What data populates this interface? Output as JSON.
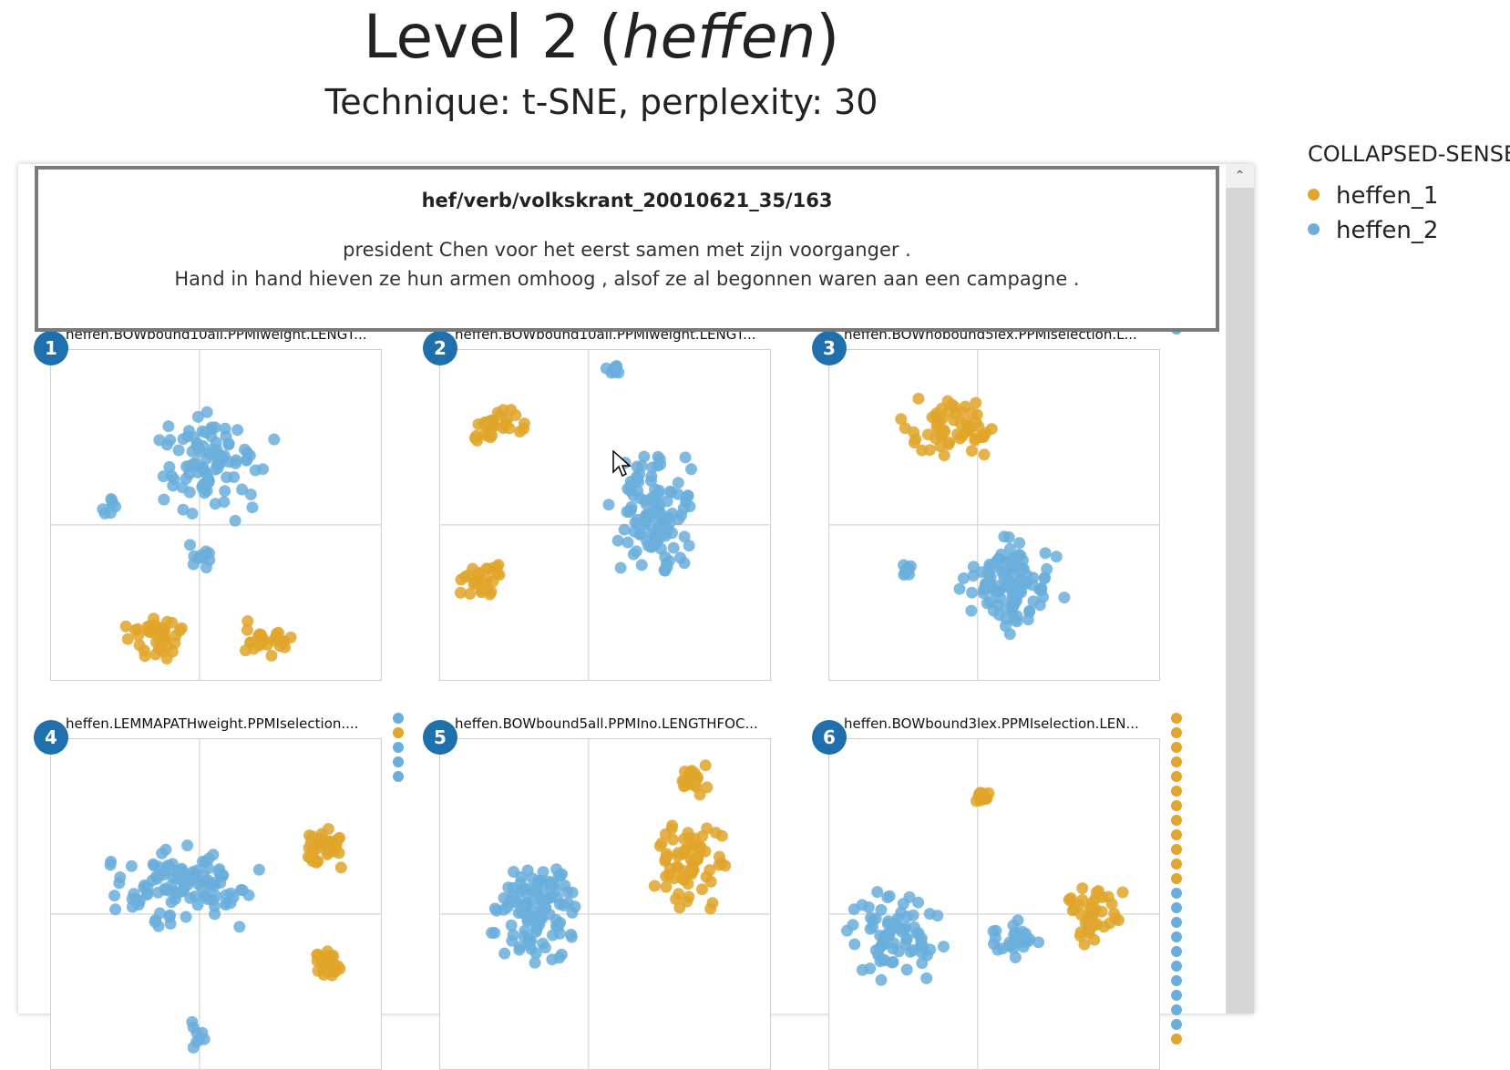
{
  "header": {
    "title_prefix": "Level 2 (",
    "title_word": "heffen",
    "title_suffix": ")",
    "subtitle": "Technique: t-SNE, perplexity: 30"
  },
  "tooltip": {
    "title": "hef/verb/volkskrant_20010621_35/163",
    "line1": "president Chen voor het eerst samen met zijn voorganger .",
    "line2": "Hand in hand hieven ze hun armen omhoog , alsof ze al begonnen waren aan een campagne ."
  },
  "legend": {
    "title": "COLLAPSED-SENSE",
    "items": [
      {
        "label": "heffen_1",
        "color": "#e0a52a"
      },
      {
        "label": "heffen_2",
        "color": "#6aaedc"
      }
    ]
  },
  "colors": {
    "accent": "#1f6fad",
    "sense1": "#e0a52a",
    "sense2": "#6aaedc"
  },
  "plots": [
    {
      "number": "1",
      "label": "heffen.BOWbound10all.PPMIweight.LENGT..."
    },
    {
      "number": "2",
      "label": "heffen.BOWbound10all.PPMIweight.LENGT..."
    },
    {
      "number": "3",
      "label": "heffen.BOWnobound5lex.PPMIselection.L..."
    },
    {
      "number": "4",
      "label": "heffen.LEMMAPATHweight.PPMIselection...."
    },
    {
      "number": "5",
      "label": "heffen.BOWbound5all.PPMIno.LENGTHFOC..."
    },
    {
      "number": "6",
      "label": "heffen.BOWbound3lex.PPMIselection.LEN..."
    }
  ],
  "scrollbar": {
    "up_icon": "chevron-up-icon"
  }
}
